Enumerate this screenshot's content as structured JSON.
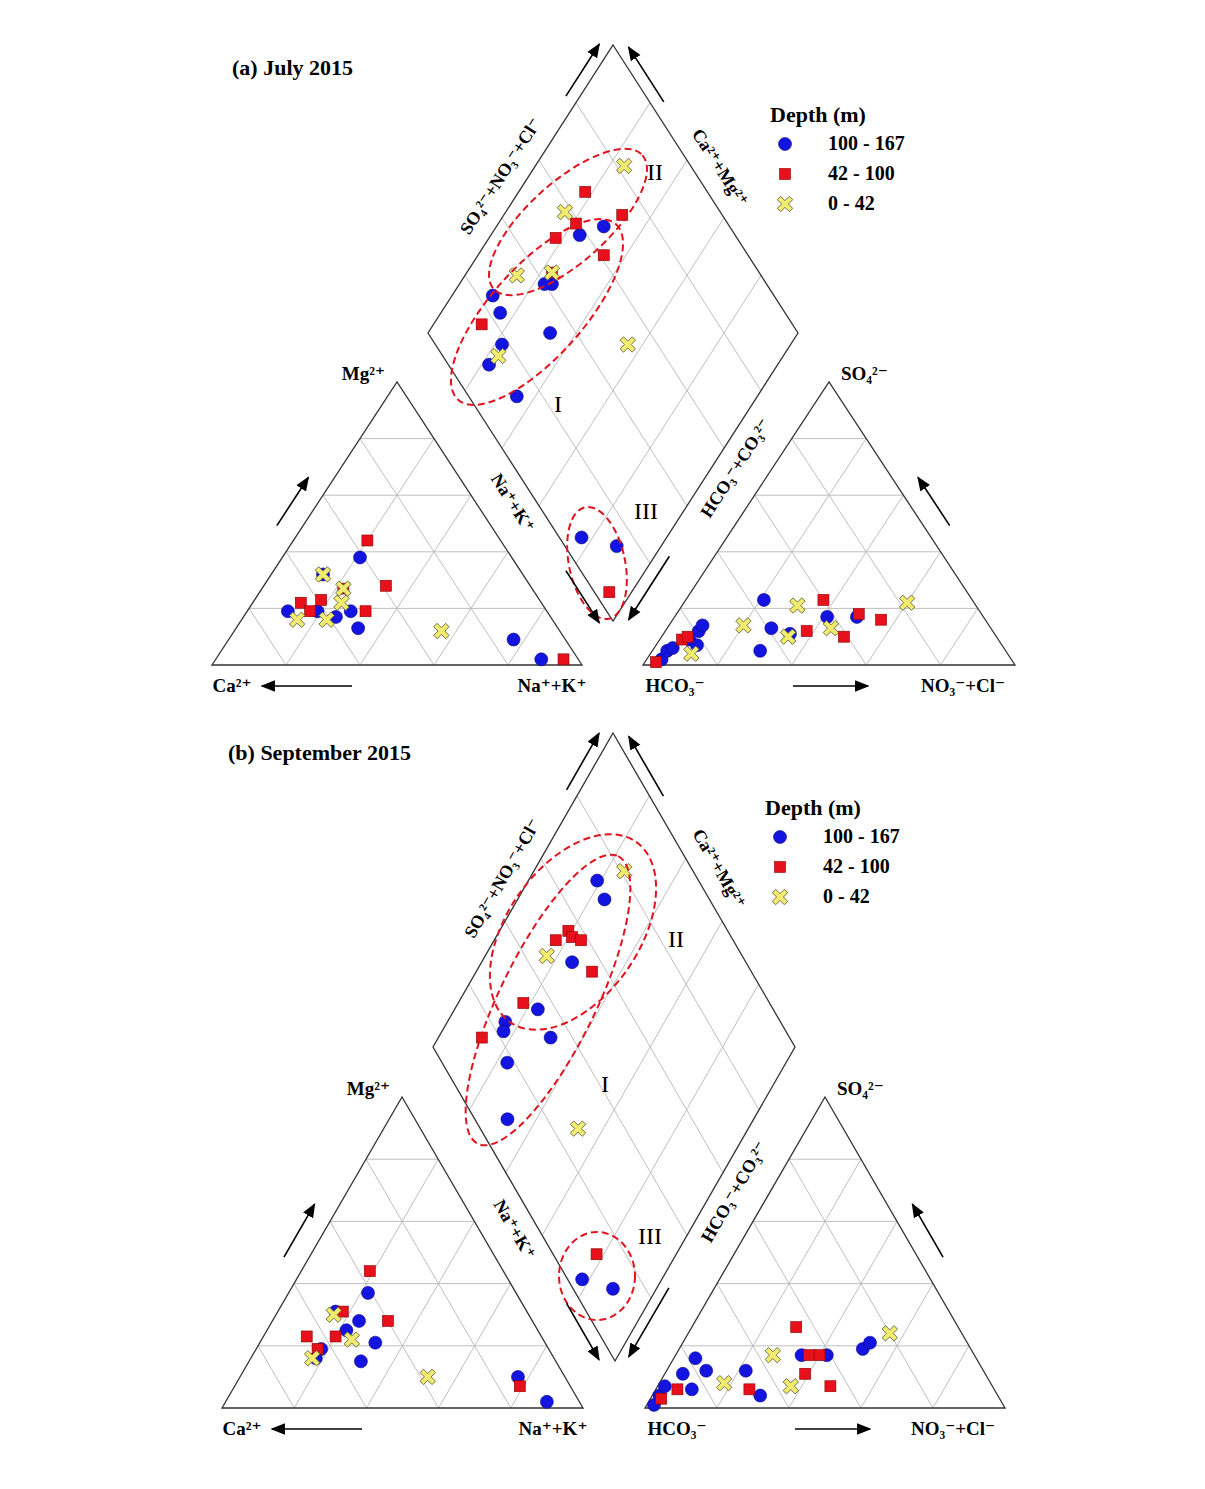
{
  "chart_data": [
    {
      "type": "piper",
      "title": "(a) July 2015",
      "lim": [
        0,
        100
      ],
      "ticks": [
        20,
        40,
        60,
        80
      ],
      "grid": true,
      "legend": "upper right",
      "legend_title": "Depth (m)",
      "cation_labels": {
        "Mg": "Mg²⁺",
        "Ca": "Ca²⁺",
        "Na_K": "Na⁺+K⁺"
      },
      "anion_labels": {
        "SO4": "SO₄²⁻",
        "HCO3": "HCO₃⁻",
        "NO3_Cl": "NO₃⁻+Cl⁻"
      },
      "diamond_labels": {
        "SO4_NO3_Cl": "SO₄²⁻+NO₃⁻+Cl⁻",
        "Ca_Mg": "Ca²⁺+Mg²⁺",
        "Na_K": "Na⁺+K⁺",
        "HCO3_CO3": "HCO₃⁻+CO₃²⁻"
      },
      "clusters": [
        "I",
        "II",
        "III"
      ],
      "series": [
        {
          "name": "100 - 167",
          "color": "#1414e0",
          "marker": "circle",
          "cation": {
            "Mg": [
              19,
              17,
              13,
              19,
              38,
              32,
              9,
              2,
              19
            ],
            "Na_K": [
              11,
              25,
              33,
              28,
              21,
              14,
              77,
              88,
              19
            ]
          },
          "anion": {
            "SO4": [
              2,
              5,
              6,
              9,
              12,
              14,
              7,
              5,
              23,
              13,
              11,
              17,
              17
            ],
            "NO3_Cl": [
              4,
              4,
              5,
              8,
              9,
              9,
              11,
              29,
              21,
              28,
              34,
              41,
              49
            ]
          },
          "diamond": {
            "Na_K": [
              29,
              24,
              25,
              23,
              11,
              16,
              33,
              22,
              22,
              35,
              77,
              88
            ],
            "SO4_NO3_Cl": [
              66,
              58,
              42,
              40,
              24,
              23,
              33,
              18,
              11,
              13,
              6,
              14
            ]
          }
        },
        {
          "name": "42 - 100",
          "color": "#e8101a",
          "marker": "square",
          "cation": {
            "Mg": [
              22,
              19,
              23,
              27,
              19,
              44,
              28,
              2
            ],
            "Na_K": [
              13,
              17,
              18,
              22,
              32,
              20,
              33,
              94
            ]
          },
          "anion": {
            "SO4": [
              1,
              9,
              10,
              12,
              23,
              10,
              18,
              16
            ],
            "NO3_Cl": [
              3,
              6,
              7,
              38,
              37,
              49,
              49,
              56
            ]
          },
          "diamond": {
            "Na_K": [
              18,
              32,
              21,
              18,
              34,
              13,
              94,
              23
            ],
            "SO4_NO3_Cl": [
              67,
              73,
              59,
              51,
              61,
              16,
              4,
              44
            ]
          }
        },
        {
          "name": "0 - 42",
          "color": "#f2ec6e",
          "marker": "x",
          "cation": {
            "Mg": [
              16,
              32,
              22,
              27,
              16,
              12
            ],
            "Na_K": [
              15,
              14,
              24,
              22,
              23,
              56
            ]
          },
          "anion": {
            "SO4": [
              4,
              14,
              21,
              10,
              13,
              22
            ],
            "NO3_Cl": [
              11,
              20,
              31,
              34,
              44,
              60
            ]
          },
          "diamond": {
            "Na_K": [
              24,
              16,
              14,
              23,
              23,
              56
            ],
            "SO4_NO3_Cl": [
              82,
              58,
              34,
              44,
              15,
              52
            ]
          }
        }
      ]
    },
    {
      "type": "piper",
      "title": "(b) September 2015",
      "lim": [
        0,
        100
      ],
      "ticks": [
        20,
        40,
        60,
        80
      ],
      "grid": true,
      "legend": "upper right",
      "legend_title": "Depth (m)",
      "cation_labels": {
        "Mg": "Mg²⁺",
        "Ca": "Ca²⁺",
        "Na_K": "Na⁺+K⁺"
      },
      "anion_labels": {
        "SO4": "SO₄²⁻",
        "HCO3": "HCO₃⁻",
        "NO3_Cl": "NO₃⁻+Cl⁻"
      },
      "diamond_labels": {
        "SO4_NO3_Cl": "SO₄²⁻+NO₃⁻+Cl⁻",
        "Ca_Mg": "Ca²⁺+Mg²⁺",
        "Na_K": "Na⁺+K⁺",
        "HCO3_CO3": "HCO₃⁻+CO₃²⁻"
      },
      "clusters": [
        "I",
        "II",
        "III"
      ],
      "series": [
        {
          "name": "100 - 167",
          "color": "#1414e0",
          "marker": "circle",
          "cation": {
            "Mg": [
              37,
              31,
              28,
              21,
              15,
              19,
              16,
              25,
              10,
              2
            ],
            "Na_K": [
              22,
              16,
              24,
              32,
              31,
              18,
              18,
              22,
              77,
              89
            ]
          },
          "anion": {
            "SO4": [
              1,
              4,
              7,
              11,
              16,
              12,
              6,
              12,
              4,
              17,
              17,
              19,
              21
            ],
            "NO3_Cl": [
              2,
              2,
              2,
              5,
              6,
              11,
              10,
              22,
              30,
              35,
              42,
              51,
              52
            ]
          },
          "diamond": {
            "Na_K": [
              19,
              24,
              25,
              23,
              16,
              17,
              31,
              23,
              32,
              78,
              88
            ],
            "SO4_NO3_Cl": [
              72,
              71,
              52,
              35,
              24,
              22,
              34,
              18,
              9,
              4,
              11
            ]
          }
        },
        {
          "name": "42 - 100",
          "color": "#e8101a",
          "marker": "square",
          "cation": {
            "Mg": [
              44,
              31,
              23,
              19,
              23,
              28,
              7
            ],
            "Na_K": [
              19,
              18,
              12,
              17,
              20,
              32,
              79
            ]
          },
          "anion": {
            "SO4": [
              3,
              6,
              6,
              26,
              11,
              17,
              17,
              7
            ],
            "NO3_Cl": [
              3,
              6,
              26,
              29,
              39,
              37,
              40,
              48
            ]
          },
          "diamond": {
            "Na_K": [
              17,
              19,
              21,
              24,
              32,
              18,
              12,
              78
            ],
            "SO4_NO3_Cl": [
              51,
              56,
              56,
              58,
              56,
              32,
              15,
              12
            ]
          }
        },
        {
          "name": "0 - 42",
          "color": "#f2ec6e",
          "marker": "x",
          "cation": {
            "Mg": [
              30,
              22,
              16,
              10
            ],
            "Na_K": [
              16,
              25,
              17,
              52
            ]
          },
          "anion": {
            "SO4": [
              8,
              17,
              7,
              24
            ],
            "NO3_Cl": [
              18,
              27,
              37,
              56
            ]
          },
          "diamond": {
            "Na_K": [
              25,
              17,
              53
            ],
            "SO4_NO3_Cl": [
              81,
              46,
              27
            ]
          }
        }
      ]
    }
  ]
}
